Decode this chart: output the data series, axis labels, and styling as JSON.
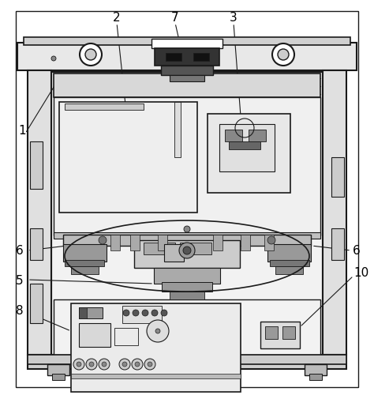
{
  "background_color": "#ffffff",
  "line_color": "#1a1a1a",
  "figsize": [
    4.74,
    5.06
  ],
  "dpi": 100
}
